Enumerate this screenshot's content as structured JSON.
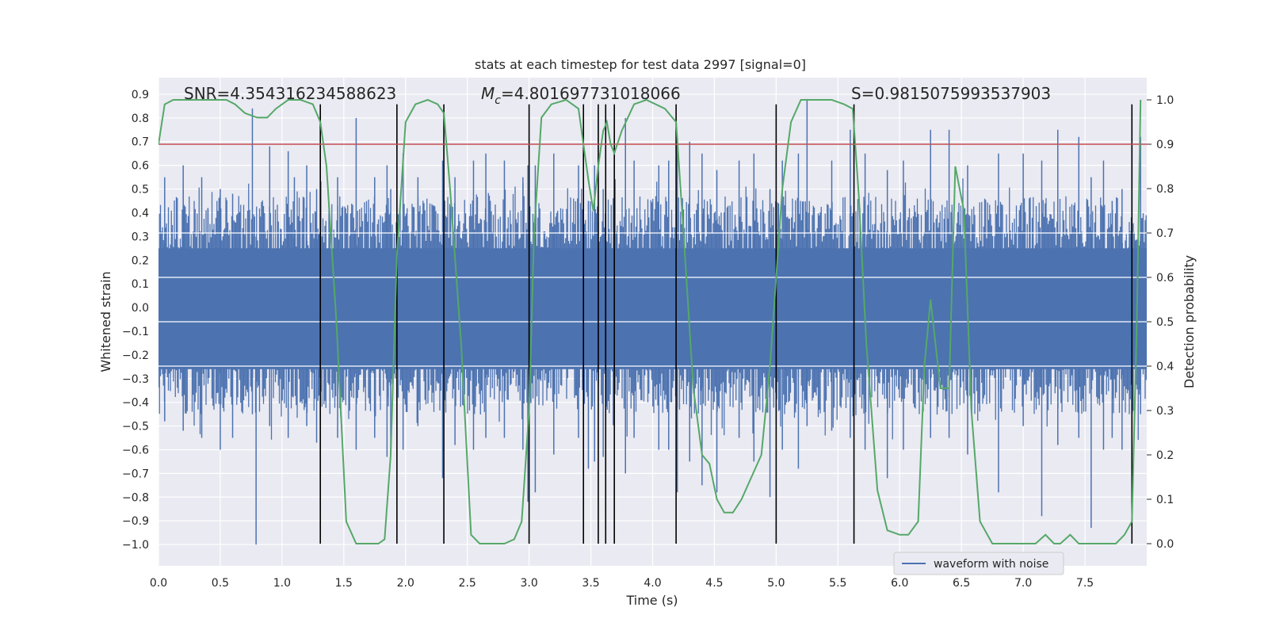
{
  "chart_data": {
    "type": "line",
    "title": "stats at each timestep for test data 2997 [signal=0]",
    "xlabel": "Time (s)",
    "ylabel": "Whitened strain",
    "y2label": "Detection probability",
    "xlim": [
      0.0,
      8.0
    ],
    "ylim": [
      -1.09,
      0.97
    ],
    "y2lim": [
      -0.05,
      1.05
    ],
    "xticks": [
      "0.0",
      "0.5",
      "1.0",
      "1.5",
      "2.0",
      "2.5",
      "3.0",
      "3.5",
      "4.0",
      "4.5",
      "5.0",
      "5.5",
      "6.0",
      "6.5",
      "7.0",
      "7.5"
    ],
    "xtick_values": [
      0,
      0.5,
      1,
      1.5,
      2,
      2.5,
      3,
      3.5,
      4,
      4.5,
      5,
      5.5,
      6,
      6.5,
      7,
      7.5
    ],
    "yticks": [
      "0.9",
      "0.8",
      "0.7",
      "0.6",
      "0.5",
      "0.4",
      "0.3",
      "0.2",
      "0.1",
      "0.0",
      "−0.1",
      "−0.2",
      "−0.3",
      "−0.4",
      "−0.5",
      "−0.6",
      "−0.7",
      "−0.8",
      "−0.9",
      "−1.0"
    ],
    "ytick_values": [
      0.9,
      0.8,
      0.7,
      0.6,
      0.5,
      0.4,
      0.3,
      0.2,
      0.1,
      0.0,
      -0.1,
      -0.2,
      -0.3,
      -0.4,
      -0.5,
      -0.6,
      -0.7,
      -0.8,
      -0.9,
      -1.0
    ],
    "y2ticks": [
      "1.0",
      "0.9",
      "0.8",
      "0.7",
      "0.6",
      "0.5",
      "0.4",
      "0.3",
      "0.2",
      "0.1",
      "0.0"
    ],
    "y2tick_values": [
      1.0,
      0.9,
      0.8,
      0.7,
      0.6,
      0.5,
      0.4,
      0.3,
      0.2,
      0.1,
      0.0
    ],
    "annotations": {
      "snr": "SNR=4.354316234588623",
      "mc_symbol": "M",
      "mc_subscript": "c",
      "mc_value": "=4.801697731018066",
      "s_value": "S=0.9815075993537903"
    },
    "legend": {
      "label": "waveform with noise",
      "placement": "lower-right"
    },
    "threshold_line": {
      "y2": 0.9,
      "color": "#c44e52"
    },
    "horizontal_lines_y2": [
      0.7,
      0.6,
      0.5,
      0.4
    ],
    "vertical_lines_x": [
      1.31,
      1.93,
      2.31,
      3.0,
      3.44,
      3.56,
      3.62,
      3.69,
      4.19,
      5.0,
      5.63,
      7.88
    ],
    "waveform": {
      "name": "waveform with noise",
      "color": "#4c72b0",
      "spikes": [
        [
          0.05,
          0.55,
          -0.48
        ],
        [
          0.2,
          0.6,
          -0.52
        ],
        [
          0.35,
          0.55,
          -0.55
        ],
        [
          0.4,
          0.42,
          -0.3
        ],
        [
          0.5,
          0.5,
          -0.6
        ],
        [
          0.6,
          0.48,
          -0.55
        ],
        [
          0.76,
          0.84,
          -0.45
        ],
        [
          0.79,
          0.3,
          -1.0
        ],
        [
          0.9,
          0.68,
          -0.5
        ],
        [
          1.05,
          0.66,
          -0.55
        ],
        [
          1.1,
          0.55,
          -0.25
        ],
        [
          1.2,
          0.6,
          -0.5
        ],
        [
          1.28,
          0.5,
          -0.57
        ],
        [
          1.45,
          0.55,
          -0.55
        ],
        [
          1.6,
          0.8,
          -0.6
        ],
        [
          1.75,
          0.55,
          -0.55
        ],
        [
          1.85,
          0.6,
          -0.63
        ],
        [
          1.88,
          0.5,
          -0.62
        ],
        [
          1.98,
          0.65,
          -0.6
        ],
        [
          2.1,
          0.55,
          -0.5
        ],
        [
          2.3,
          0.62,
          -0.72
        ],
        [
          2.4,
          0.55,
          -0.58
        ],
        [
          2.55,
          0.62,
          -0.6
        ],
        [
          2.65,
          0.65,
          -0.55
        ],
        [
          2.8,
          0.62,
          -0.55
        ],
        [
          2.95,
          0.55,
          -0.6
        ],
        [
          2.99,
          0.6,
          -0.82
        ],
        [
          3.05,
          0.6,
          -0.78
        ],
        [
          3.2,
          0.65,
          -0.62
        ],
        [
          3.4,
          0.6,
          -0.55
        ],
        [
          3.48,
          0.45,
          -0.68
        ],
        [
          3.53,
          0.6,
          -0.65
        ],
        [
          3.6,
          0.5,
          -0.63
        ],
        [
          3.78,
          0.8,
          -0.7
        ],
        [
          3.85,
          0.62,
          -0.55
        ],
        [
          4.05,
          0.6,
          -0.6
        ],
        [
          4.13,
          0.62,
          -0.6
        ],
        [
          4.2,
          0.72,
          -0.78
        ],
        [
          4.3,
          0.7,
          -0.65
        ],
        [
          4.4,
          0.65,
          -0.75
        ],
        [
          4.52,
          0.58,
          -0.78
        ],
        [
          4.7,
          0.62,
          -0.55
        ],
        [
          4.82,
          0.65,
          -0.65
        ],
        [
          4.95,
          0.5,
          -0.8
        ],
        [
          5.05,
          0.62,
          -0.6
        ],
        [
          5.18,
          0.65,
          -0.68
        ],
        [
          5.25,
          0.88,
          -0.5
        ],
        [
          5.45,
          0.62,
          -0.52
        ],
        [
          5.6,
          0.75,
          -0.55
        ],
        [
          5.72,
          0.65,
          -0.6
        ],
        [
          5.9,
          0.58,
          -0.72
        ],
        [
          6.03,
          0.62,
          -0.6
        ],
        [
          6.25,
          0.75,
          -0.55
        ],
        [
          6.4,
          0.75,
          -0.55
        ],
        [
          6.55,
          0.6,
          -0.62
        ],
        [
          6.8,
          0.65,
          -0.78
        ],
        [
          7.0,
          0.65,
          -0.5
        ],
        [
          7.15,
          0.62,
          -0.88
        ],
        [
          7.28,
          0.75,
          -0.58
        ],
        [
          7.45,
          0.72,
          -0.55
        ],
        [
          7.55,
          0.55,
          -0.93
        ],
        [
          7.65,
          0.62,
          -0.6
        ],
        [
          7.72,
          0.45,
          -0.55
        ],
        [
          7.8,
          0.5,
          -0.6
        ],
        [
          7.88,
          0.62,
          -0.62
        ],
        [
          7.95,
          0.72,
          -0.45
        ]
      ]
    },
    "probability": {
      "name": "detection probability",
      "color": "#55a868",
      "x": [
        0.0,
        0.05,
        0.12,
        0.25,
        0.4,
        0.55,
        0.62,
        0.7,
        0.8,
        0.88,
        0.95,
        1.05,
        1.15,
        1.25,
        1.31,
        1.36,
        1.44,
        1.52,
        1.6,
        1.7,
        1.78,
        1.83,
        1.88,
        1.93,
        2.0,
        2.08,
        2.18,
        2.26,
        2.31,
        2.36,
        2.45,
        2.53,
        2.6,
        2.7,
        2.8,
        2.88,
        2.94,
        3.0,
        3.04,
        3.1,
        3.18,
        3.3,
        3.4,
        3.44,
        3.48,
        3.52,
        3.56,
        3.6,
        3.63,
        3.66,
        3.69,
        3.75,
        3.85,
        3.95,
        4.1,
        4.19,
        4.25,
        4.33,
        4.4,
        4.46,
        4.52,
        4.58,
        4.65,
        4.72,
        4.8,
        4.88,
        4.95,
        5.0,
        5.05,
        5.12,
        5.2,
        5.3,
        5.45,
        5.55,
        5.62,
        5.67,
        5.73,
        5.82,
        5.9,
        6.0,
        6.07,
        6.15,
        6.2,
        6.25,
        6.33,
        6.4,
        6.45,
        6.52,
        6.58,
        6.65,
        6.75,
        6.9,
        7.0,
        7.1,
        7.18,
        7.25,
        7.3,
        7.38,
        7.45,
        7.55,
        7.65,
        7.75,
        7.82,
        7.88,
        7.92,
        7.95
      ],
      "y": [
        0.9,
        0.99,
        1.0,
        1.0,
        1.0,
        1.0,
        0.99,
        0.97,
        0.96,
        0.96,
        0.98,
        1.0,
        1.0,
        0.99,
        0.95,
        0.85,
        0.5,
        0.05,
        0.0,
        0.0,
        0.0,
        0.01,
        0.2,
        0.65,
        0.95,
        0.99,
        1.0,
        0.99,
        0.97,
        0.8,
        0.45,
        0.02,
        0.0,
        0.0,
        0.0,
        0.01,
        0.05,
        0.3,
        0.7,
        0.96,
        0.99,
        1.0,
        0.98,
        0.9,
        0.82,
        0.75,
        0.85,
        0.93,
        0.95,
        0.9,
        0.88,
        0.93,
        0.99,
        1.0,
        0.98,
        0.95,
        0.7,
        0.35,
        0.2,
        0.18,
        0.1,
        0.07,
        0.07,
        0.1,
        0.15,
        0.2,
        0.4,
        0.6,
        0.8,
        0.95,
        1.0,
        1.0,
        1.0,
        0.99,
        0.98,
        0.78,
        0.45,
        0.12,
        0.03,
        0.02,
        0.02,
        0.05,
        0.4,
        0.55,
        0.35,
        0.35,
        0.85,
        0.75,
        0.3,
        0.05,
        0.0,
        0.0,
        0.0,
        0.0,
        0.02,
        0.0,
        0.0,
        0.02,
        0.0,
        0.0,
        0.0,
        0.0,
        0.02,
        0.05,
        0.5,
        1.0
      ]
    }
  }
}
